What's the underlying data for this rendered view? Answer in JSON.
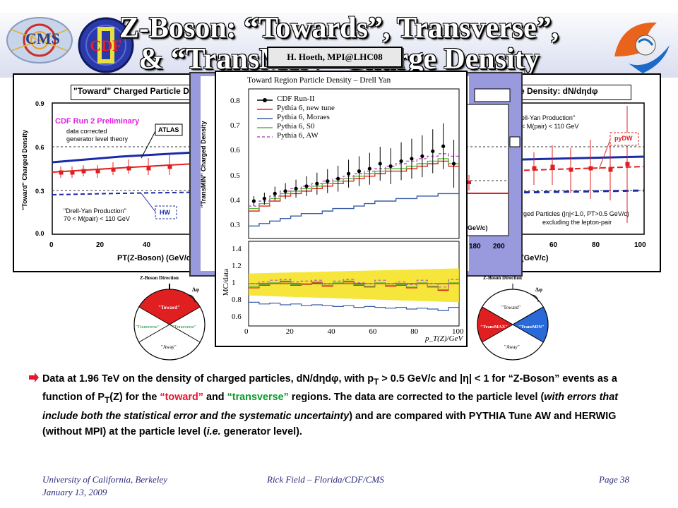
{
  "header": {
    "title_line1": "Z-Boson: “Towards”, Transverse”,",
    "title_line2": "& “TransMIN” Charge Density",
    "author_tag": "H. Hoeth, MPI@LHC08",
    "logos": [
      "cms-logo",
      "cdf-logo",
      "florida-logo"
    ]
  },
  "left_plot": {
    "title": "\"Toward\" Charged Particle Density: dN/dηdφ",
    "ylabel": "\"Toward\" Charged Density",
    "xlabel": "PT(Z-Boson) (GeV/c)",
    "preliminary": "CDF Run 2 Preliminary",
    "corrected_note": [
      "data corrected",
      "generator level theory"
    ],
    "atlas_label": "ATLAS",
    "hw_label": "HW",
    "process": [
      "\"Drell-Yan Production\"",
      "70 < M(pair) < 110 GeV"
    ],
    "yticks": [
      "0.9",
      "0.6",
      "0.3",
      "0.0"
    ],
    "xticks": [
      "0",
      "20",
      "40"
    ]
  },
  "right_plot": {
    "title": "e Density: dN/dηdφ",
    "process": [
      "ell-Yan Production\"",
      "< M(pair) < 110 GeV"
    ],
    "pydw_label": "pyDW",
    "cuts": [
      "rged Particles (|η|<1.0, PT>0.5 GeV/c)",
      "excluding the lepton-pair"
    ],
    "xlabel": "(GeV/c)",
    "xticks": [
      "60",
      "80",
      "100"
    ]
  },
  "middle_plot": {
    "ylabel": "\"TransMIN\" Charged Density",
    "xticks": [
      "180",
      "200"
    ],
    "cut_frag": ".5 GeV/c)"
  },
  "inset": {
    "title": "Toward Region Particle Density – Drell Yan",
    "legend": [
      "CDF Run-II",
      "Pythia 6, new tune",
      "Pythia 6, Moraes",
      "Pythia 6, S0",
      "Pythia 6, AW"
    ],
    "legend_colors": [
      "#000000",
      "#e0281c",
      "#3a5ea8",
      "#5cb83c",
      "#c050c0"
    ],
    "yticks_top": [
      "0.8",
      "0.7",
      "0.6",
      "0.5",
      "0.4",
      "0.3"
    ],
    "yticks_bottom": [
      "1.4",
      "1.2",
      "1",
      "0.8",
      "0.6"
    ],
    "ratio_label": "MC/data",
    "xticks": [
      "0",
      "20",
      "40",
      "60",
      "80",
      "100"
    ],
    "xlabel": "p_T(Z)/GeV"
  },
  "diagrams": {
    "left": {
      "direction": "Z-Boson Direction",
      "dphi": "Δφ",
      "toward": "\"Toward\"",
      "trans_left": "\"Transverse\"",
      "trans_right": "\"Transverse\"",
      "away": "\"Away\""
    },
    "right": {
      "direction": "Z-Boson Direction",
      "dphi": "Δφ",
      "toward": "\"Toward\"",
      "transmax": "\"TransMAX\"",
      "transmin": "\"TransMIN\"",
      "away": "\"Away\""
    }
  },
  "bullet": {
    "p1": "Data at 1.96 TeV on the density of charged particles, dN/dηdφ, with p",
    "sub_T": "T",
    "p2": " > 0.5 GeV/c and |η| < 1 for “Z-Boson” events as a function of P",
    "sub_T2": "T",
    "p3": "(Z) for the ",
    "toward": "“toward”",
    "and": " and ",
    "transverse": "“transverse”",
    "p4": " regions.  The data are corrected to the particle level (",
    "italic": "with errors that include both the statistical error and the systematic uncertainty",
    "p5": ") and are compared with PYTHIA Tune AW and HERWIG (without MPI) at the particle level (",
    "ie": "i.e.",
    "p6": " generator level)."
  },
  "footer": {
    "left1": "University of California, Berkeley",
    "left2": "January 13, 2009",
    "center": "Rick Field – Florida/CDF/CMS",
    "right": "Page 38"
  }
}
